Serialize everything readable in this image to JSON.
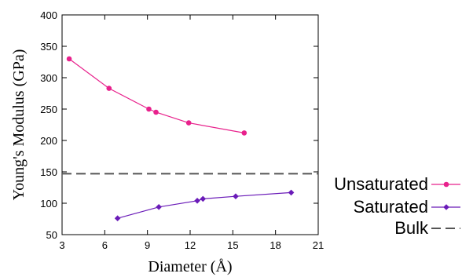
{
  "chart_data": {
    "type": "line",
    "title": "",
    "xlabel": "Diameter (Å)",
    "ylabel": "Young's Modulus (GPa)",
    "xlim": [
      3,
      21
    ],
    "ylim": [
      50,
      400
    ],
    "xticks": [
      3,
      6,
      9,
      12,
      15,
      18,
      21
    ],
    "yticks": [
      50,
      100,
      150,
      200,
      250,
      300,
      350,
      400
    ],
    "grid": false,
    "legend_position": "bottom-right",
    "series": [
      {
        "name": "Unsaturated",
        "color": "#e8218c",
        "marker": "circle",
        "x": [
          3.5,
          6.3,
          9.1,
          9.6,
          11.9,
          15.8
        ],
        "y": [
          330,
          283,
          250,
          245,
          228,
          212
        ]
      },
      {
        "name": "Saturated",
        "color": "#6a1bb8",
        "marker": "diamond",
        "x": [
          6.9,
          9.8,
          12.5,
          12.9,
          15.2,
          19.1
        ],
        "y": [
          76,
          94,
          104,
          107,
          111,
          117
        ]
      },
      {
        "name": "Bulk",
        "color": "#555555",
        "marker": "none",
        "style": "dashed",
        "x": [
          3,
          21
        ],
        "y": [
          147,
          147
        ]
      }
    ]
  }
}
